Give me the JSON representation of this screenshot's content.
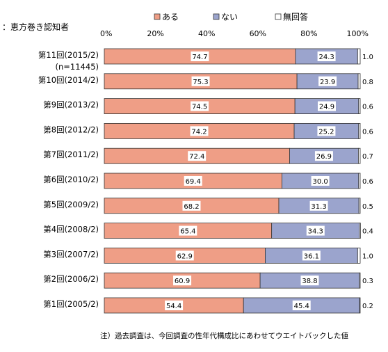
{
  "chart_data": {
    "type": "bar",
    "orientation": "horizontal",
    "stacked": true,
    "subtitle": "：恵方巻き認知者",
    "x_ticks": [
      "0%",
      "20%",
      "40%",
      "60%",
      "80%",
      "100%"
    ],
    "xlim": [
      0,
      100
    ],
    "legend_position": "top",
    "categories": [
      [
        "第11回(2015/2)",
        "(n=11445)"
      ],
      [
        "第10回(2014/2)"
      ],
      [
        "第9回(2013/2)"
      ],
      [
        "第8回(2012/2)"
      ],
      [
        "第7回(2011/2)"
      ],
      [
        "第6回(2010/2)"
      ],
      [
        "第5回(2009/2)"
      ],
      [
        "第4回(2008/2)"
      ],
      [
        "第3回(2007/2)"
      ],
      [
        "第2回(2006/2)"
      ],
      [
        "第1回(2005/2)"
      ]
    ],
    "series": [
      {
        "name": "ある",
        "color": "#ef9e86",
        "values": [
          74.7,
          75.3,
          74.5,
          74.2,
          72.4,
          69.4,
          68.2,
          65.4,
          62.9,
          60.9,
          54.4
        ]
      },
      {
        "name": "ない",
        "color": "#9ba4cd",
        "values": [
          24.3,
          23.9,
          24.9,
          25.2,
          26.9,
          30.0,
          31.3,
          34.3,
          36.1,
          38.8,
          45.4
        ]
      },
      {
        "name": "無回答",
        "color": "#ffffff",
        "values": [
          1.0,
          0.8,
          0.6,
          0.6,
          0.7,
          0.6,
          0.5,
          0.4,
          1.0,
          0.3,
          0.2
        ]
      }
    ],
    "value_labels": [
      [
        "74.7",
        "24.3",
        "1.0"
      ],
      [
        "75.3",
        "23.9",
        "0.8"
      ],
      [
        "74.5",
        "24.9",
        "0.6"
      ],
      [
        "74.2",
        "25.2",
        "0.6"
      ],
      [
        "72.4",
        "26.9",
        "0.7"
      ],
      [
        "69.4",
        "30.0",
        "0.6"
      ],
      [
        "68.2",
        "31.3",
        "0.5"
      ],
      [
        "65.4",
        "34.3",
        "0.4"
      ],
      [
        "62.9",
        "36.1",
        "1.0"
      ],
      [
        "60.9",
        "38.8",
        "0.3"
      ],
      [
        "54.4",
        "45.4",
        "0.2"
      ]
    ],
    "note": "注）過去調査は、今回調査の性年代構成比にあわせてウエイトバックした値"
  }
}
